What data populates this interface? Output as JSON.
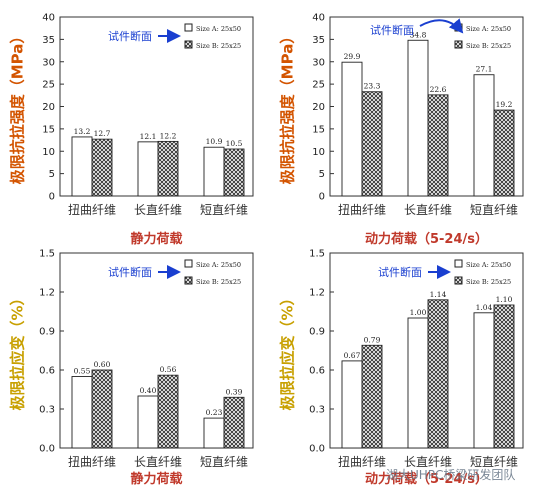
{
  "chart_data": [
    {
      "type": "bar",
      "categories": [
        "扭曲纤维",
        "长直纤维",
        "短直纤维"
      ],
      "series": [
        {
          "name": "Size A: 25x50",
          "values": [
            13.2,
            12.1,
            10.9
          ]
        },
        {
          "name": "Size B: 25x25",
          "values": [
            12.7,
            12.2,
            10.5
          ]
        }
      ],
      "value_labels": [
        [
          "13.2",
          "12.1",
          "10.9"
        ],
        [
          "12.7",
          "12.2",
          "10.5"
        ]
      ],
      "title": "静力荷载",
      "xlabel": "",
      "ylabel": "极限抗拉强度（MPa）",
      "ylim": [
        0,
        40
      ],
      "yticks": [
        "0",
        "5",
        "10",
        "15",
        "20",
        "25",
        "30",
        "35",
        "40"
      ],
      "annotation": "试件断面",
      "legend_position": "top-right",
      "grid": false
    },
    {
      "type": "bar",
      "categories": [
        "扭曲纤维",
        "长直纤维",
        "短直纤维"
      ],
      "series": [
        {
          "name": "Size A: 25x50",
          "values": [
            29.9,
            34.8,
            27.1
          ]
        },
        {
          "name": "Size B: 25x25",
          "values": [
            23.3,
            22.6,
            19.2
          ]
        }
      ],
      "value_labels": [
        [
          "29.9",
          "34.8",
          "27.1"
        ],
        [
          "23.3",
          "22.6",
          "19.2"
        ]
      ],
      "title": "动力荷载（5-24/s）",
      "xlabel": "",
      "ylabel": "极限抗拉强度（MPa）",
      "ylim": [
        0,
        40
      ],
      "yticks": [
        "0",
        "5",
        "10",
        "15",
        "20",
        "25",
        "30",
        "35",
        "40"
      ],
      "annotation": "试件断面",
      "legend_position": "top-right",
      "grid": false
    },
    {
      "type": "bar",
      "categories": [
        "扭曲纤维",
        "长直纤维",
        "短直纤维"
      ],
      "series": [
        {
          "name": "Size A: 25x50",
          "values": [
            0.55,
            0.4,
            0.23
          ]
        },
        {
          "name": "Size B: 25x25",
          "values": [
            0.6,
            0.56,
            0.39
          ]
        }
      ],
      "value_labels": [
        [
          "0.55",
          "0.40",
          "0.23"
        ],
        [
          "0.60",
          "0.56",
          "0.39"
        ]
      ],
      "title": "静力荷载",
      "xlabel": "",
      "ylabel": "极限拉应变（%）",
      "ylim": [
        0,
        1.5
      ],
      "yticks": [
        "0.0",
        "0.3",
        "0.6",
        "0.9",
        "1.2",
        "1.5"
      ],
      "annotation": "试件断面",
      "legend_position": "top-right",
      "grid": false
    },
    {
      "type": "bar",
      "categories": [
        "扭曲纤维",
        "长直纤维",
        "短直纤维"
      ],
      "series": [
        {
          "name": "Size A: 25x50",
          "values": [
            0.67,
            1.0,
            1.04
          ]
        },
        {
          "name": "Size B: 25x25",
          "values": [
            0.79,
            1.14,
            1.1
          ]
        }
      ],
      "value_labels": [
        [
          "0.67",
          "1.00",
          "1.04"
        ],
        [
          "0.79",
          "1.14",
          "1.10"
        ]
      ],
      "title": "动力荷载（5-24/s）",
      "xlabel": "",
      "ylabel": "极限拉应变（%）",
      "ylim": [
        0,
        1.5
      ],
      "yticks": [
        "0.0",
        "0.3",
        "0.6",
        "0.9",
        "1.2",
        "1.5"
      ],
      "annotation": "试件断面",
      "legend_position": "top-right",
      "grid": false
    }
  ],
  "watermark": "湖大UHPC桥梁研发团队",
  "colors": {
    "title": "#c0392b",
    "ylabel_strength": "#d35400",
    "ylabel_strain": "#c8a000",
    "annotation": "#1a3fd0",
    "axis": "#333333"
  }
}
